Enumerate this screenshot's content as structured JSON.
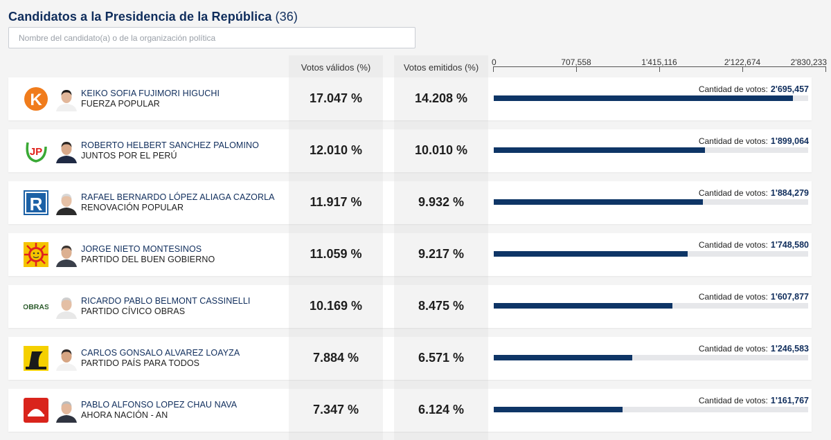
{
  "header": {
    "title": "Candidatos a la Presidencia de la República",
    "count": "(36)",
    "search_placeholder": "Nombre del candidato(a) o de la organización política"
  },
  "columns": {
    "valid_votes": "Votos válidos (%)",
    "emitted_votes": "Votos emitidos (%)"
  },
  "axis": {
    "max": 2830233,
    "ticks": [
      "0",
      "707,558",
      "1'415,116",
      "2'122,674",
      "2'830,233"
    ]
  },
  "votes_label": "Cantidad de votos:",
  "colors": {
    "bar": "#0e3566",
    "track": "#e6e7ea",
    "title": "#0f2d5c"
  },
  "candidates": [
    {
      "name": "KEIKO SOFIA FUJIMORI HIGUCHI",
      "party": "FUERZA POPULAR",
      "valid": "17.047 %",
      "emitted": "14.208 %",
      "votes_text": "2'695,457",
      "votes": 2695457,
      "logo_icon": "fuerza-popular-logo-icon"
    },
    {
      "name": "ROBERTO HELBERT SANCHEZ PALOMINO",
      "party": "JUNTOS POR EL PERÚ",
      "valid": "12.010 %",
      "emitted": "10.010 %",
      "votes_text": "1'899,064",
      "votes": 1899064,
      "logo_icon": "juntos-por-el-peru-logo-icon"
    },
    {
      "name": "RAFAEL BERNARDO LÓPEZ ALIAGA CAZORLA",
      "party": "RENOVACIÓN POPULAR",
      "valid": "11.917 %",
      "emitted": "9.932 %",
      "votes_text": "1'884,279",
      "votes": 1884279,
      "logo_icon": "renovacion-popular-logo-icon"
    },
    {
      "name": "JORGE NIETO MONTESINOS",
      "party": "PARTIDO DEL BUEN GOBIERNO",
      "valid": "11.059 %",
      "emitted": "9.217 %",
      "votes_text": "1'748,580",
      "votes": 1748580,
      "logo_icon": "buen-gobierno-logo-icon"
    },
    {
      "name": "RICARDO PABLO BELMONT CASSINELLI",
      "party": "PARTIDO CÍVICO OBRAS",
      "valid": "10.169 %",
      "emitted": "8.475 %",
      "votes_text": "1'607,877",
      "votes": 1607877,
      "logo_icon": "obras-logo-icon",
      "logo_text": "OBRAS"
    },
    {
      "name": "CARLOS GONSALO ALVAREZ LOAYZA",
      "party": "PARTIDO PAÍS PARA TODOS",
      "valid": "7.884 %",
      "emitted": "6.571 %",
      "votes_text": "1'246,583",
      "votes": 1246583,
      "logo_icon": "pais-para-todos-logo-icon"
    },
    {
      "name": "PABLO ALFONSO LOPEZ CHAU NAVA",
      "party": "AHORA NACIÓN - AN",
      "valid": "7.347 %",
      "emitted": "6.124 %",
      "votes_text": "1'161,767",
      "votes": 1161767,
      "logo_icon": "ahora-nacion-logo-icon"
    }
  ]
}
